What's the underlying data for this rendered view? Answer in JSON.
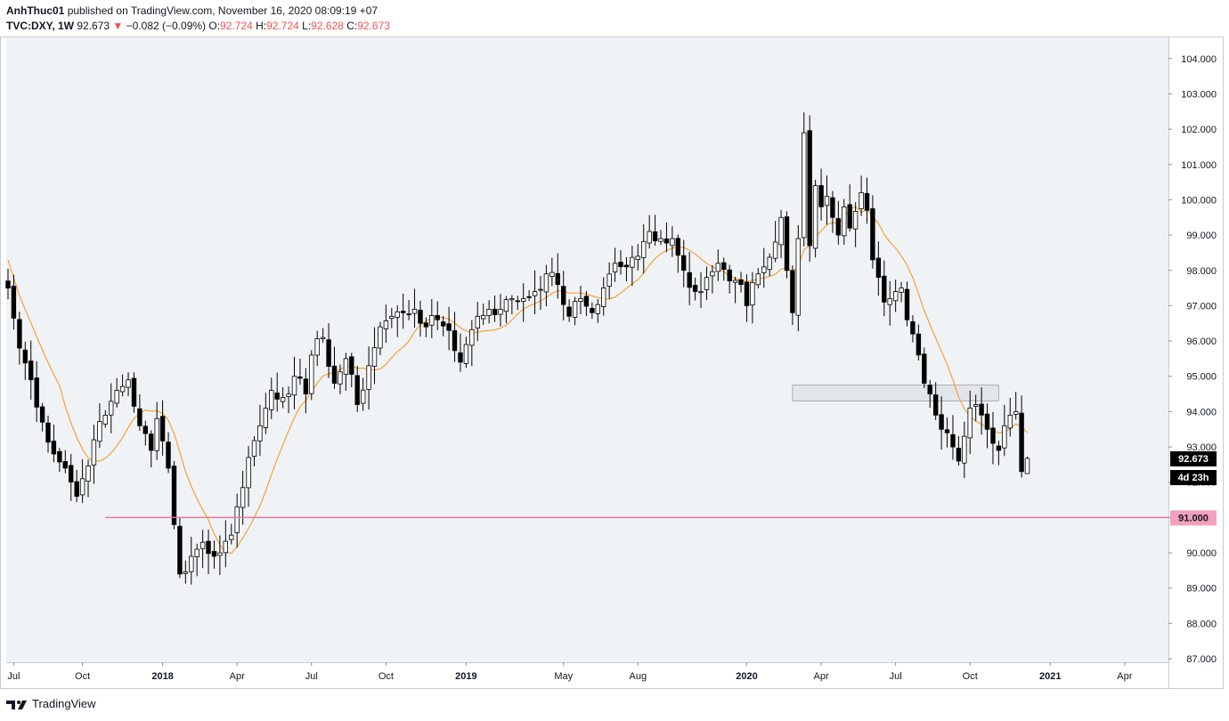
{
  "header": {
    "author": "AnhThuc01",
    "published_text": "published on TradingView.com, November 16, 2020 08:09:19 +07",
    "symbol": "TVC:DXY, 1W",
    "last": "92.673",
    "change": "−0.082 (−0.09%)",
    "ohlc": [
      {
        "label": "O:",
        "value": "92.724"
      },
      {
        "label": "H:",
        "value": "92.724"
      },
      {
        "label": "L:",
        "value": "92.628"
      },
      {
        "label": "C:",
        "value": "92.673"
      }
    ]
  },
  "footer": {
    "brand": "TradingView"
  },
  "colors": {
    "plot_bg": "#f0f3f5",
    "up_body": "#ffffff",
    "down_body": "#000000",
    "ma": "#f7a13a",
    "support_line": "#e07a9f",
    "zone_fill": "#dfe2e6",
    "negative": "#ef5350"
  },
  "chart_data": {
    "type": "candlestick",
    "timeframe": "1W",
    "y_range": [
      86.9,
      104.6
    ],
    "y_ticks": [
      "104.000",
      "103.000",
      "102.000",
      "101.000",
      "100.000",
      "99.000",
      "98.000",
      "97.000",
      "96.000",
      "95.000",
      "94.000",
      "93.000",
      "92.000",
      "91.000",
      "90.000",
      "89.000",
      "88.000",
      "87.000"
    ],
    "x_labels": [
      {
        "label": "Jul",
        "bold": false
      },
      {
        "label": "Oct",
        "bold": false
      },
      {
        "label": "2018",
        "bold": true
      },
      {
        "label": "Apr",
        "bold": false
      },
      {
        "label": "Jul",
        "bold": false
      },
      {
        "label": "Oct",
        "bold": false
      },
      {
        "label": "2019",
        "bold": true
      },
      {
        "label": "May",
        "bold": false
      },
      {
        "label": "Aug",
        "bold": false
      },
      {
        "label": "2020",
        "bold": true
      },
      {
        "label": "Apr",
        "bold": false
      },
      {
        "label": "Jul",
        "bold": false
      },
      {
        "label": "Oct",
        "bold": false
      },
      {
        "label": "2021",
        "bold": true
      },
      {
        "label": "Apr",
        "bold": false
      }
    ],
    "x_label_weeks": [
      1,
      13,
      27,
      40,
      53,
      66,
      80,
      97,
      110,
      129,
      142,
      155,
      168,
      182,
      195
    ],
    "close_anchors": [
      [
        0,
        97.5
      ],
      [
        2,
        95.8
      ],
      [
        4,
        94.9
      ],
      [
        6,
        93.7
      ],
      [
        8,
        92.8
      ],
      [
        10,
        92.4
      ],
      [
        12,
        91.6
      ],
      [
        13,
        92.1
      ],
      [
        15,
        93.2
      ],
      [
        17,
        93.9
      ],
      [
        19,
        94.6
      ],
      [
        21,
        94.9
      ],
      [
        23,
        93.6
      ],
      [
        25,
        92.9
      ],
      [
        26,
        93.8
      ],
      [
        28,
        92.4
      ],
      [
        29,
        90.8
      ],
      [
        30,
        89.4
      ],
      [
        32,
        89.9
      ],
      [
        34,
        90.3
      ],
      [
        36,
        89.9
      ],
      [
        37,
        90.0
      ],
      [
        39,
        90.5
      ],
      [
        40,
        91.3
      ],
      [
        42,
        92.7
      ],
      [
        44,
        93.6
      ],
      [
        46,
        94.6
      ],
      [
        48,
        94.4
      ],
      [
        50,
        95.0
      ],
      [
        52,
        94.5
      ],
      [
        53,
        95.6
      ],
      [
        55,
        96.1
      ],
      [
        57,
        94.8
      ],
      [
        59,
        95.5
      ],
      [
        61,
        94.2
      ],
      [
        63,
        95.3
      ],
      [
        65,
        96.4
      ],
      [
        67,
        96.7
      ],
      [
        69,
        96.8
      ],
      [
        71,
        96.9
      ],
      [
        73,
        96.4
      ],
      [
        75,
        96.6
      ],
      [
        77,
        96.3
      ],
      [
        79,
        95.4
      ],
      [
        80,
        95.9
      ],
      [
        82,
        96.7
      ],
      [
        84,
        96.9
      ],
      [
        86,
        96.9
      ],
      [
        88,
        97.2
      ],
      [
        90,
        97.2
      ],
      [
        92,
        97.4
      ],
      [
        94,
        97.9
      ],
      [
        96,
        97.6
      ],
      [
        98,
        96.7
      ],
      [
        100,
        97.2
      ],
      [
        102,
        96.8
      ],
      [
        104,
        97.5
      ],
      [
        106,
        98.2
      ],
      [
        108,
        98.1
      ],
      [
        110,
        98.4
      ],
      [
        112,
        99.1
      ],
      [
        114,
        98.9
      ],
      [
        116,
        98.9
      ],
      [
        118,
        98.0
      ],
      [
        120,
        97.4
      ],
      [
        122,
        97.8
      ],
      [
        124,
        98.2
      ],
      [
        126,
        97.7
      ],
      [
        128,
        97.6
      ],
      [
        129,
        97.0
      ],
      [
        131,
        97.9
      ],
      [
        132,
        98.1
      ],
      [
        134,
        98.8
      ],
      [
        135,
        99.5
      ],
      [
        136,
        98.0
      ],
      [
        137,
        96.8
      ],
      [
        138,
        98.9
      ],
      [
        139,
        101.9
      ],
      [
        140,
        98.7
      ],
      [
        141,
        100.4
      ],
      [
        142,
        99.8
      ],
      [
        143,
        100.1
      ],
      [
        144,
        99.5
      ],
      [
        145,
        99.0
      ],
      [
        146,
        99.8
      ],
      [
        147,
        99.2
      ],
      [
        149,
        100.2
      ],
      [
        150,
        99.7
      ],
      [
        151,
        98.3
      ],
      [
        152,
        97.8
      ],
      [
        153,
        97.1
      ],
      [
        154,
        97.2
      ],
      [
        155,
        97.4
      ],
      [
        156,
        97.5
      ],
      [
        157,
        96.6
      ],
      [
        158,
        96.2
      ],
      [
        159,
        95.6
      ],
      [
        160,
        94.8
      ],
      [
        161,
        94.5
      ],
      [
        162,
        93.9
      ],
      [
        163,
        93.5
      ],
      [
        164,
        93.4
      ],
      [
        165,
        93.0
      ],
      [
        166,
        92.6
      ],
      [
        167,
        93.3
      ],
      [
        168,
        94.1
      ],
      [
        169,
        94.2
      ],
      [
        170,
        93.9
      ],
      [
        171,
        93.5
      ],
      [
        172,
        93.1
      ],
      [
        173,
        92.9
      ],
      [
        174,
        93.6
      ],
      [
        175,
        93.9
      ],
      [
        176,
        94.0
      ],
      [
        177,
        92.3
      ],
      [
        178,
        92.7
      ]
    ],
    "current_price": 92.673,
    "countdown": "4d 23h",
    "support_level": {
      "value": 91.0,
      "label": "91.000",
      "from_week": 17
    },
    "resistance_zone": {
      "low": 94.3,
      "high": 94.75,
      "from_week": 137,
      "to_week": 173
    },
    "moving_average": "orange line"
  }
}
